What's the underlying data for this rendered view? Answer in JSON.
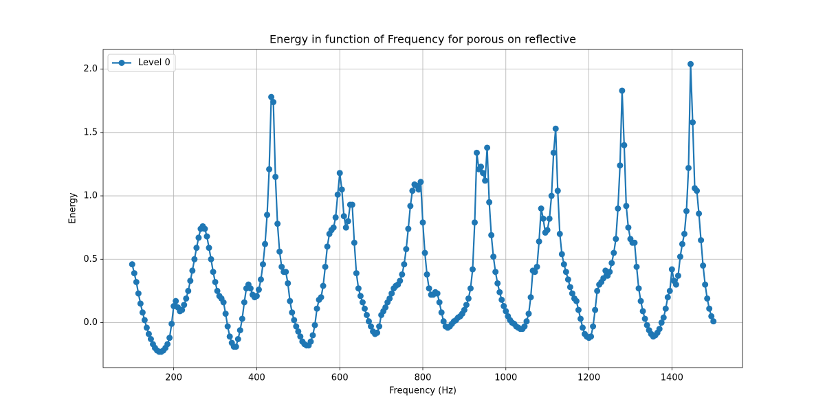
{
  "chart_data": {
    "type": "line",
    "title": "Energy in function of Frequency for porous on reflective",
    "xlabel": "Frequency (Hz)",
    "ylabel": "Energy",
    "x": [
      100,
      105,
      110,
      115,
      120,
      125,
      130,
      135,
      140,
      145,
      150,
      155,
      160,
      165,
      170,
      175,
      180,
      185,
      190,
      195,
      200,
      205,
      210,
      215,
      220,
      225,
      230,
      235,
      240,
      245,
      250,
      255,
      260,
      265,
      270,
      275,
      280,
      285,
      290,
      295,
      300,
      305,
      310,
      315,
      320,
      325,
      330,
      335,
      340,
      345,
      350,
      355,
      360,
      365,
      370,
      375,
      380,
      385,
      390,
      395,
      400,
      405,
      410,
      415,
      420,
      425,
      430,
      435,
      440,
      445,
      450,
      455,
      460,
      465,
      470,
      475,
      480,
      485,
      490,
      495,
      500,
      505,
      510,
      515,
      520,
      525,
      530,
      535,
      540,
      545,
      550,
      555,
      560,
      565,
      570,
      575,
      580,
      585,
      590,
      595,
      600,
      605,
      610,
      615,
      620,
      625,
      630,
      635,
      640,
      645,
      650,
      655,
      660,
      665,
      670,
      675,
      680,
      685,
      690,
      695,
      700,
      705,
      710,
      715,
      720,
      725,
      730,
      735,
      740,
      745,
      750,
      755,
      760,
      765,
      770,
      775,
      780,
      785,
      790,
      795,
      800,
      805,
      810,
      815,
      820,
      825,
      830,
      835,
      840,
      845,
      850,
      855,
      860,
      865,
      870,
      875,
      880,
      885,
      890,
      895,
      900,
      905,
      910,
      915,
      920,
      925,
      930,
      935,
      940,
      945,
      950,
      955,
      960,
      965,
      970,
      975,
      980,
      985,
      990,
      995,
      1000,
      1005,
      1010,
      1015,
      1020,
      1025,
      1030,
      1035,
      1040,
      1045,
      1050,
      1055,
      1060,
      1065,
      1070,
      1075,
      1080,
      1085,
      1090,
      1095,
      1100,
      1105,
      1110,
      1115,
      1120,
      1125,
      1130,
      1135,
      1140,
      1145,
      1150,
      1155,
      1160,
      1165,
      1170,
      1175,
      1180,
      1185,
      1190,
      1195,
      1200,
      1205,
      1210,
      1215,
      1220,
      1225,
      1230,
      1235,
      1240,
      1245,
      1250,
      1255,
      1260,
      1265,
      1270,
      1275,
      1280,
      1285,
      1290,
      1295,
      1300,
      1305,
      1310,
      1315,
      1320,
      1325,
      1330,
      1335,
      1340,
      1345,
      1350,
      1355,
      1360,
      1365,
      1370,
      1375,
      1380,
      1385,
      1390,
      1395,
      1400,
      1405,
      1410,
      1415,
      1420,
      1425,
      1430,
      1435,
      1440,
      1445,
      1450,
      1455,
      1460,
      1465,
      1470,
      1475,
      1480,
      1485,
      1490,
      1495,
      1500
    ],
    "series": [
      {
        "name": "Level 0",
        "color": "#1f77b4",
        "values": [
          0.46,
          0.39,
          0.32,
          0.23,
          0.15,
          0.08,
          0.02,
          -0.04,
          -0.09,
          -0.13,
          -0.17,
          -0.2,
          -0.22,
          -0.23,
          -0.23,
          -0.22,
          -0.2,
          -0.17,
          -0.12,
          -0.01,
          0.13,
          0.17,
          0.12,
          0.09,
          0.1,
          0.14,
          0.19,
          0.25,
          0.33,
          0.41,
          0.5,
          0.59,
          0.67,
          0.74,
          0.76,
          0.74,
          0.68,
          0.59,
          0.5,
          0.4,
          0.32,
          0.25,
          0.21,
          0.19,
          0.16,
          0.07,
          -0.03,
          -0.11,
          -0.16,
          -0.19,
          -0.19,
          -0.13,
          -0.06,
          0.03,
          0.16,
          0.27,
          0.3,
          0.27,
          0.22,
          0.2,
          0.21,
          0.26,
          0.34,
          0.46,
          0.62,
          0.85,
          1.21,
          1.78,
          1.74,
          1.15,
          0.78,
          0.56,
          0.44,
          0.4,
          0.4,
          0.31,
          0.17,
          0.08,
          0.02,
          -0.03,
          -0.07,
          -0.11,
          -0.15,
          -0.17,
          -0.18,
          -0.18,
          -0.15,
          -0.1,
          -0.02,
          0.11,
          0.18,
          0.2,
          0.29,
          0.44,
          0.6,
          0.7,
          0.73,
          0.75,
          0.83,
          1.01,
          1.18,
          1.05,
          0.84,
          0.75,
          0.8,
          0.93,
          0.93,
          0.63,
          0.39,
          0.27,
          0.21,
          0.16,
          0.11,
          0.06,
          0.01,
          -0.03,
          -0.07,
          -0.09,
          -0.08,
          -0.03,
          0.06,
          0.09,
          0.12,
          0.16,
          0.19,
          0.23,
          0.27,
          0.29,
          0.3,
          0.33,
          0.38,
          0.46,
          0.58,
          0.74,
          0.92,
          1.04,
          1.09,
          1.08,
          1.05,
          1.11,
          0.79,
          0.55,
          0.38,
          0.27,
          0.22,
          0.22,
          0.24,
          0.23,
          0.16,
          0.08,
          0.01,
          -0.03,
          -0.04,
          -0.03,
          -0.01,
          0.01,
          0.02,
          0.04,
          0.05,
          0.07,
          0.1,
          0.14,
          0.19,
          0.27,
          0.42,
          0.79,
          1.34,
          1.21,
          1.23,
          1.18,
          1.12,
          1.38,
          0.95,
          0.69,
          0.52,
          0.4,
          0.31,
          0.24,
          0.18,
          0.13,
          0.09,
          0.05,
          0.02,
          0.0,
          -0.01,
          -0.03,
          -0.04,
          -0.05,
          -0.05,
          -0.03,
          0.01,
          0.07,
          0.2,
          0.41,
          0.4,
          0.44,
          0.64,
          0.9,
          0.82,
          0.71,
          0.73,
          0.82,
          1.0,
          1.34,
          1.53,
          1.04,
          0.7,
          0.54,
          0.46,
          0.4,
          0.34,
          0.28,
          0.23,
          0.19,
          0.17,
          0.1,
          0.03,
          -0.04,
          -0.09,
          -0.11,
          -0.12,
          -0.11,
          -0.03,
          0.1,
          0.25,
          0.3,
          0.32,
          0.35,
          0.41,
          0.37,
          0.4,
          0.47,
          0.55,
          0.66,
          0.9,
          1.24,
          1.83,
          1.4,
          0.92,
          0.75,
          0.66,
          0.63,
          0.63,
          0.44,
          0.27,
          0.17,
          0.09,
          0.03,
          -0.02,
          -0.06,
          -0.09,
          -0.11,
          -0.1,
          -0.08,
          -0.05,
          0.0,
          0.04,
          0.11,
          0.2,
          0.25,
          0.42,
          0.33,
          0.3,
          0.37,
          0.52,
          0.62,
          0.7,
          0.88,
          1.22,
          2.04,
          1.58,
          1.06,
          1.04,
          0.86,
          0.65,
          0.45,
          0.3,
          0.19,
          0.11,
          0.05,
          0.01
        ]
      }
    ],
    "xlim": [
      30,
      1570
    ],
    "ylim": [
      -0.355,
      2.155
    ],
    "xticks": [
      200,
      400,
      600,
      800,
      1000,
      1200,
      1400
    ],
    "yticks": [
      {
        "value": 0,
        "label": "0.0"
      },
      0.5,
      {
        "value": 1,
        "label": "1.0"
      },
      1.5,
      {
        "value": 2,
        "label": "2.0"
      }
    ],
    "grid": true,
    "legend": "upper left"
  }
}
